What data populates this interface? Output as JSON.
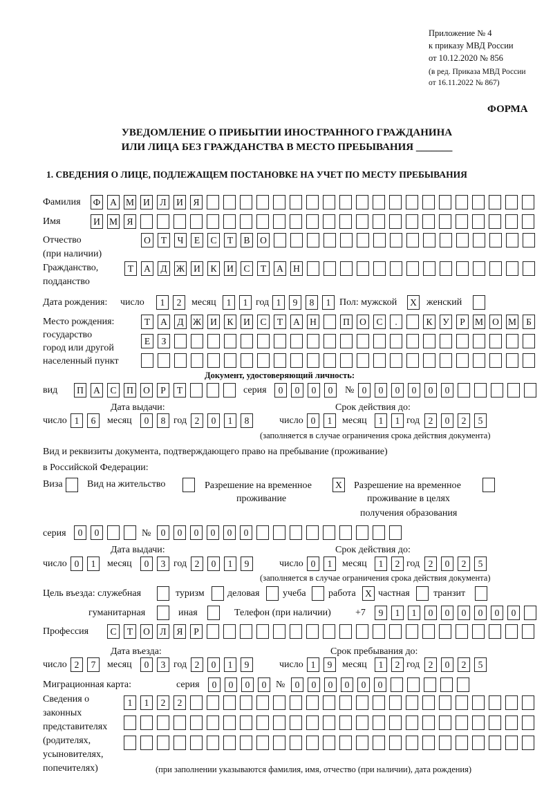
{
  "header": {
    "line1": "Приложение № 4",
    "line2": "к приказу МВД России",
    "line3": "от 10.12.2020 № 856",
    "line4": "(в ред. Приказа МВД России",
    "line5": "от 16.11.2022 № 867)",
    "forma": "ФОРМА",
    "title1": "УВЕДОМЛЕНИЕ О ПРИБЫТИИ ИНОСТРАННОГО ГРАЖДАНИНА",
    "title2": "ИЛИ ЛИЦА БЕЗ ГРАЖДАНСТВА В МЕСТО ПРЕБЫВАНИЯ _______",
    "section1": "1. СВЕДЕНИЯ О ЛИЦЕ, ПОДЛЕЖАЩЕМ ПОСТАНОВКЕ НА УЧЕТ ПО МЕСТУ ПРЕБЫВАНИЯ"
  },
  "labels": {
    "surname": "Фамилия",
    "name": "Имя",
    "patronymic1": "Отчество",
    "patronymic2": "(при наличии)",
    "citizenship1": "Гражданство,",
    "citizenship2": "подданство",
    "birth_date": "Дата рождения:",
    "day": "число",
    "month": "месяц",
    "year": "год",
    "sex": "Пол: мужской",
    "female": "женский",
    "birth_place1": "Место рождения:",
    "birth_place2": "государство",
    "birth_place3": "город или другой",
    "birth_place4": "населенный пункт",
    "id_doc": "Документ, удостоверяющий личность:",
    "kind": "вид",
    "series": "серия",
    "number": "№",
    "issue_date": "Дата выдачи:",
    "valid_until": "Срок действия до:",
    "validity_note": "(заполняется в случае ограничения срока действия документа)",
    "right_doc1": "Вид и реквизиты документа, подтверждающего право на пребывание (проживание)",
    "right_doc2": "в Российской Федерации:",
    "visa": "Виза",
    "residence": "Вид на жительство",
    "trp1": "Разрешение на временное",
    "trp2": "проживание",
    "trpe1": "Разрешение на временное",
    "trpe2": "проживание в целях",
    "trpe3": "получения образования",
    "purpose": "Цель въезда: служебная",
    "tourism": "туризм",
    "business": "деловая",
    "study": "учеба",
    "work": "работа",
    "private": "частная",
    "transit": "транзит",
    "humanitarian": "гуманитарная",
    "other": "иная",
    "phone": "Телефон (при наличии)",
    "phone_prefix": "+7",
    "profession": "Профессия",
    "entry_date": "Дата въезда:",
    "stay_until": "Срок пребывания до:",
    "migration_card": "Миграционная карта:",
    "rep1": "Сведения о",
    "rep2": "законных",
    "rep3": "представителях",
    "rep4": "(родителях,",
    "rep5": "усыновителях,",
    "rep6": "попечителях)",
    "rep_note": "(при заполнении указываются фамилия, имя, отчество (при наличии), дата рождения)"
  },
  "fields": {
    "surname": [
      "Ф",
      "А",
      "М",
      "И",
      "Л",
      "И",
      "Я"
    ],
    "name": [
      "И",
      "М",
      "Я"
    ],
    "patronymic": [
      "О",
      "Т",
      "Ч",
      "Е",
      "С",
      "Т",
      "В",
      "О"
    ],
    "citizenship": [
      "Т",
      "А",
      "Д",
      "Ж",
      "И",
      "К",
      "И",
      "С",
      "Т",
      "А",
      "Н"
    ],
    "birth_day": [
      "1",
      "2"
    ],
    "birth_month": [
      "1",
      "1"
    ],
    "birth_year": [
      "1",
      "9",
      "8",
      "1"
    ],
    "sex_male": [
      "X"
    ],
    "sex_female": [],
    "birth_place_1": [
      "Т",
      "А",
      "Д",
      "Ж",
      "И",
      "К",
      "И",
      "С",
      "Т",
      "А",
      "Н",
      "",
      "П",
      "О",
      "С",
      ".",
      "",
      "К",
      "У",
      "Р",
      "М",
      "О",
      "М",
      "Б"
    ],
    "birth_place_2": [
      "Е",
      "З"
    ],
    "birth_place_3": [],
    "doc_kind": [
      "П",
      "А",
      "С",
      "П",
      "О",
      "Р",
      "Т"
    ],
    "doc_series": [
      "0",
      "0",
      "0",
      "0"
    ],
    "doc_number": [
      "0",
      "0",
      "0",
      "0",
      "0",
      "0"
    ],
    "doc_issue_day": [
      "1",
      "6"
    ],
    "doc_issue_month": [
      "0",
      "8"
    ],
    "doc_issue_year": [
      "2",
      "0",
      "1",
      "8"
    ],
    "doc_valid_day": [
      "0",
      "1"
    ],
    "doc_valid_month": [
      "1",
      "1"
    ],
    "doc_valid_year": [
      "2",
      "0",
      "2",
      "5"
    ],
    "visa": [],
    "residence": [],
    "trp": [
      "X"
    ],
    "trpe": [],
    "rdoc_series": [
      "0",
      "0"
    ],
    "rdoc_number": [
      "0",
      "0",
      "0",
      "0",
      "0",
      "0"
    ],
    "rdoc_issue_day": [
      "0",
      "1"
    ],
    "rdoc_issue_month": [
      "0",
      "3"
    ],
    "rdoc_issue_year": [
      "2",
      "0",
      "1",
      "9"
    ],
    "rdoc_valid_day": [
      "0",
      "1"
    ],
    "rdoc_valid_month": [
      "1",
      "2"
    ],
    "rdoc_valid_year": [
      "2",
      "0",
      "2",
      "5"
    ],
    "p_service": [],
    "p_tourism": [],
    "p_business": [],
    "p_study": [],
    "p_work": [
      "X"
    ],
    "p_private": [],
    "p_transit": [],
    "p_humanitarian": [],
    "p_other": [],
    "phone": [
      "9",
      "1",
      "1",
      "0",
      "0",
      "0",
      "0",
      "0",
      "0"
    ],
    "profession": [
      "С",
      "Т",
      "О",
      "Л",
      "Я",
      "Р"
    ],
    "entry_day": [
      "2",
      "7"
    ],
    "entry_month": [
      "0",
      "3"
    ],
    "entry_year": [
      "2",
      "0",
      "1",
      "9"
    ],
    "stay_day": [
      "1",
      "9"
    ],
    "stay_month": [
      "1",
      "2"
    ],
    "stay_year": [
      "2",
      "0",
      "2",
      "5"
    ],
    "mc_series": [
      "0",
      "0",
      "0",
      "0"
    ],
    "mc_number": [
      "0",
      "0",
      "0",
      "0",
      "0",
      "0"
    ],
    "rep_1": [
      "1",
      "1",
      "2",
      "2"
    ],
    "rep_2": [],
    "rep_3": []
  }
}
